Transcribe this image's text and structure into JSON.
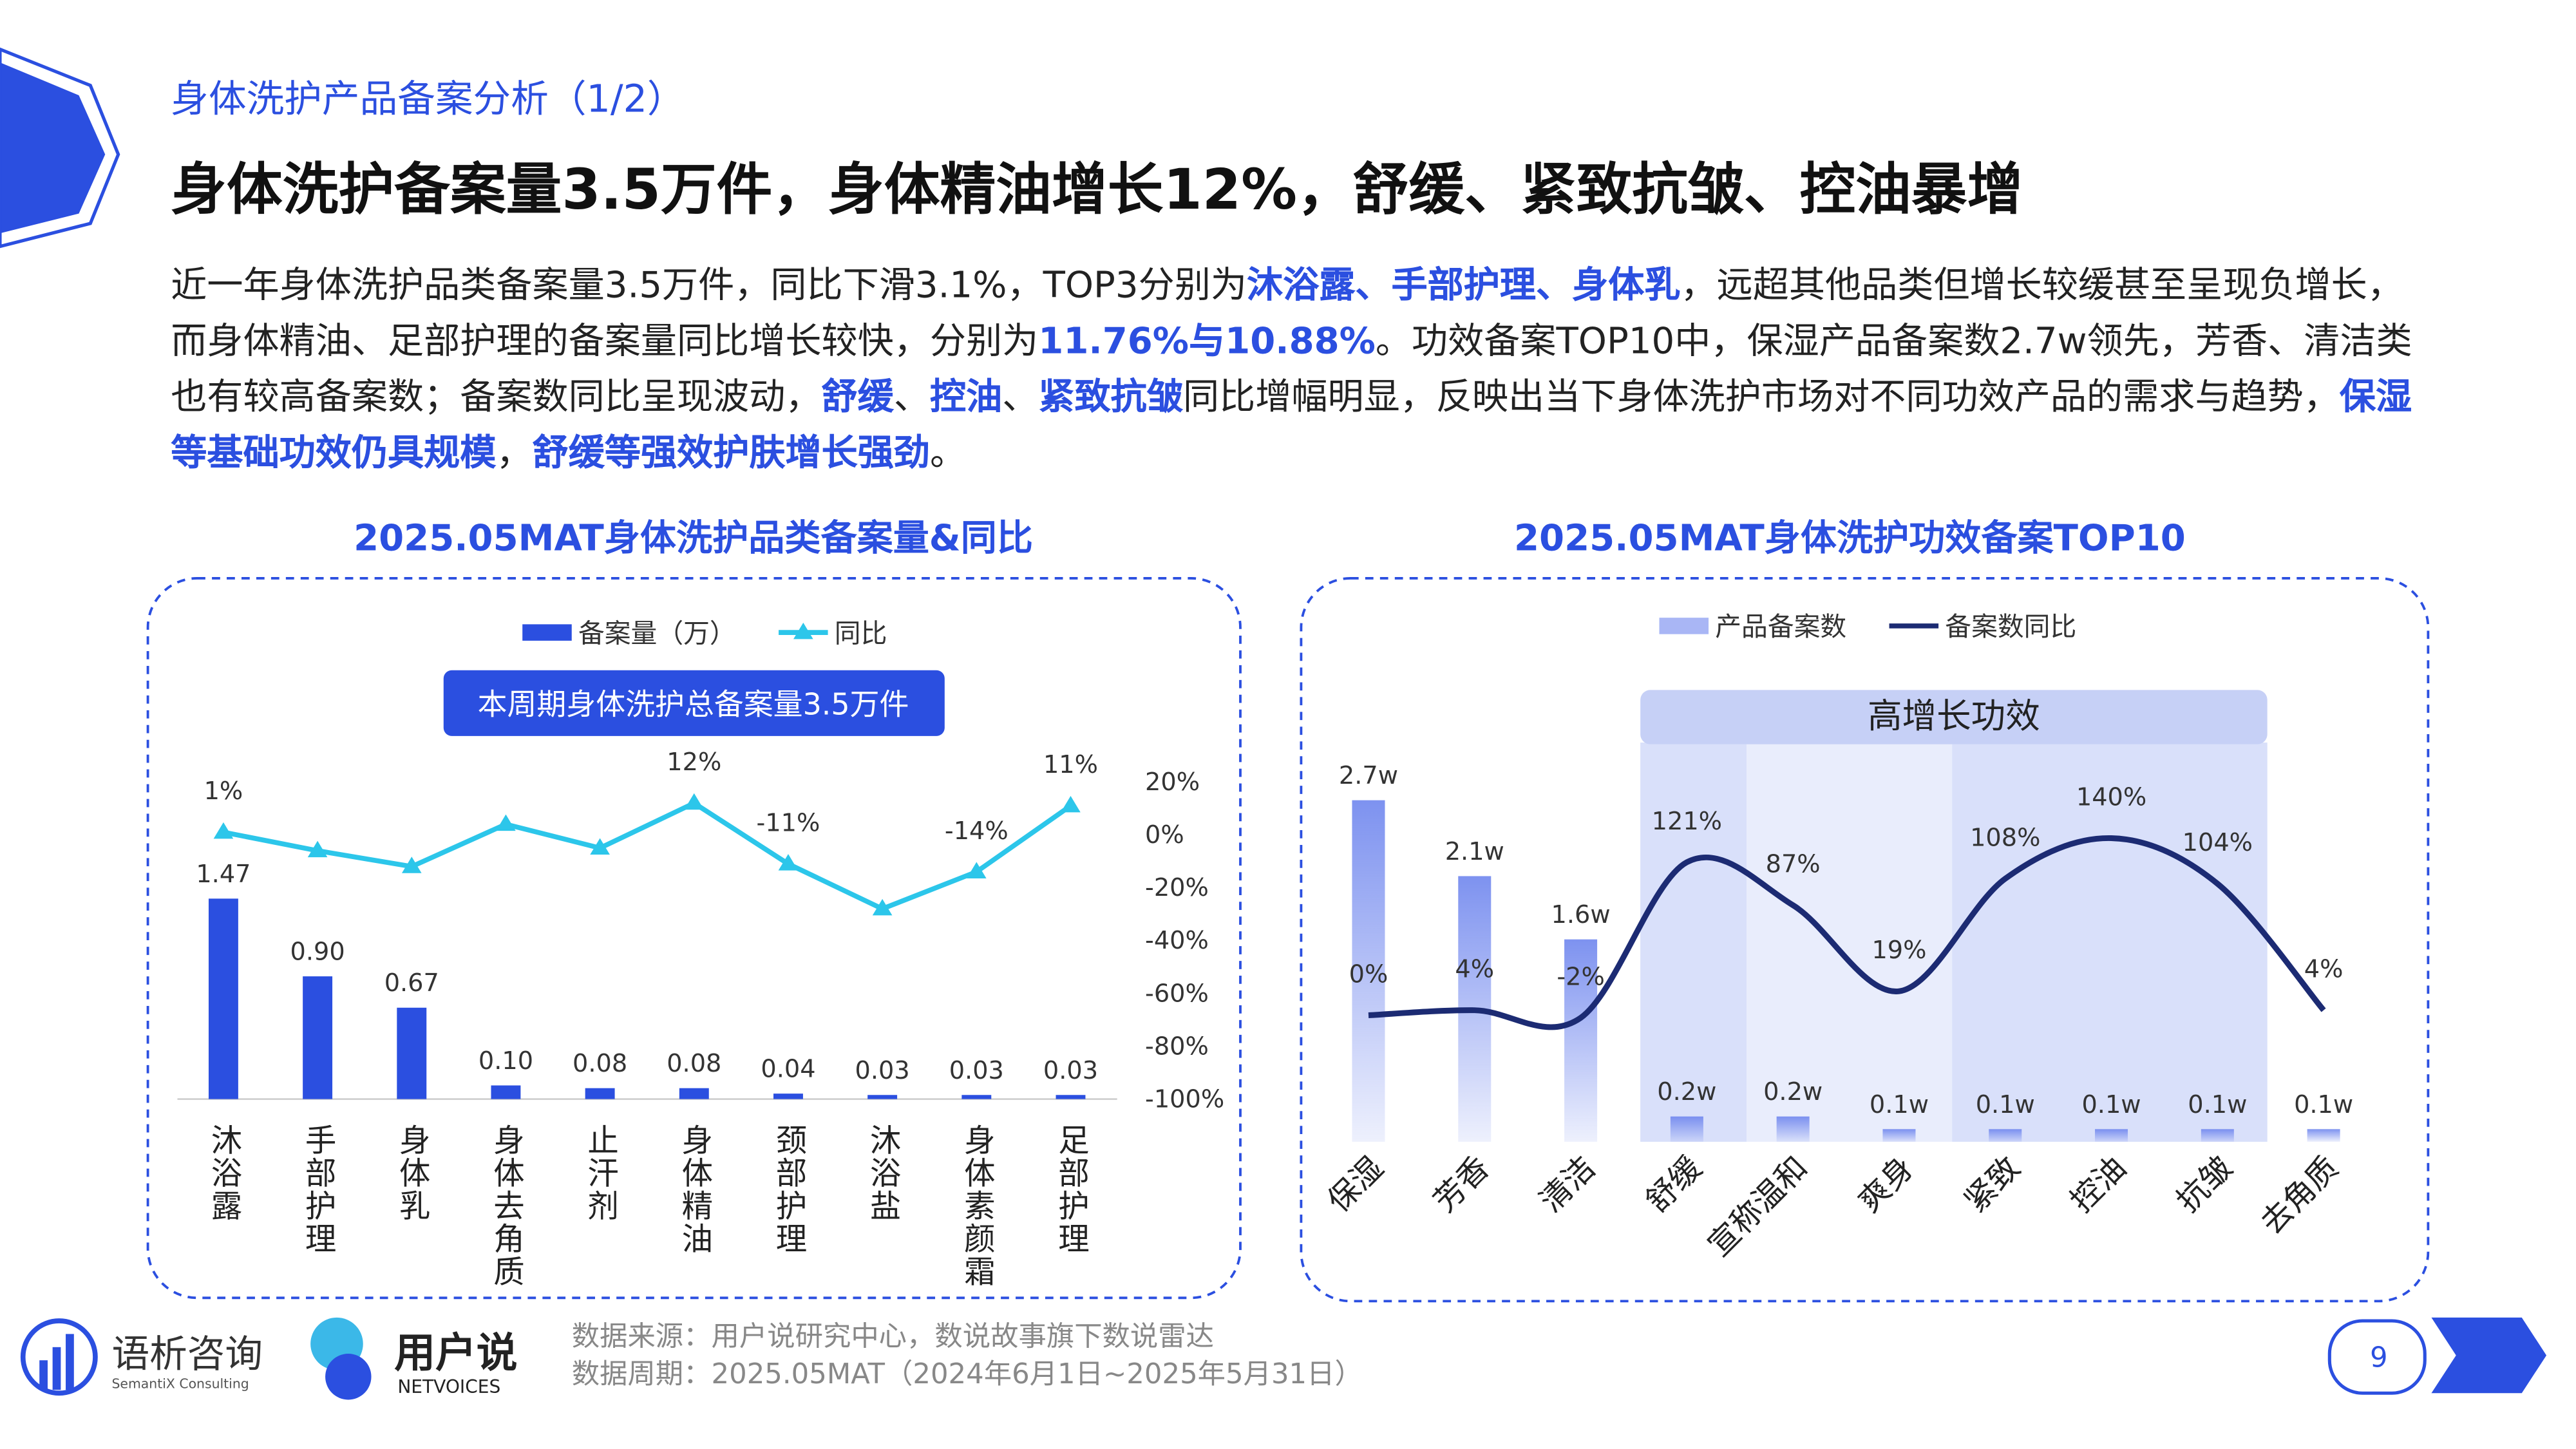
{
  "header": {
    "section": "身体洗护产品备案分析（1/2）",
    "title": "身体洗护备案量3.5万件，身体精油增长12%，舒缓、紧致抗皱、控油暴增"
  },
  "summary": {
    "runs": [
      {
        "text": "近一年身体洗护品类备案量3.5万件，同比下滑3.1%，TOP3分别为",
        "emphasis": false
      },
      {
        "text": "沐浴露、手部护理、身体乳",
        "emphasis": true
      },
      {
        "text": "，远超其他品类但增长较缓甚至呈现负增长，而身体精油、足部护理的备案量同比增长较快，分别为",
        "emphasis": false
      },
      {
        "text": "11.76%与10.88%",
        "emphasis": true
      },
      {
        "text": "。功效备案TOP10中，保湿产品备案数2.7w领先，芳香、清洁类也有较高备案数；备案数同比呈现波动，",
        "emphasis": false
      },
      {
        "text": "舒缓",
        "emphasis": true
      },
      {
        "text": "、",
        "emphasis": false
      },
      {
        "text": "控油",
        "emphasis": true
      },
      {
        "text": "、",
        "emphasis": false
      },
      {
        "text": "紧致抗皱",
        "emphasis": true
      },
      {
        "text": "同比增幅明显，反映出当下身体洗护市场对不同功效产品的需求与趋势，",
        "emphasis": false
      },
      {
        "text": "保湿等基础功效仍具规模",
        "emphasis": true
      },
      {
        "text": "，",
        "emphasis": false
      },
      {
        "text": "舒缓等强效护肤增长强劲",
        "emphasis": true
      },
      {
        "text": "。",
        "emphasis": false
      }
    ]
  },
  "chart_data": [
    {
      "type": "bar",
      "title": "2025.05MAT身体洗护品类备案量&同比",
      "annotation": "本周期身体洗护总备案量3.5万件",
      "categories": [
        "沐浴露",
        "手部护理",
        "身体乳",
        "身体去角质",
        "止汗剂",
        "身体精油",
        "颈部护理",
        "沐浴盐",
        "身体素颜霜",
        "足部护理"
      ],
      "series": [
        {
          "name": "备案量（万）",
          "color": "#2b4fe0",
          "values": [
            1.47,
            0.9,
            0.67,
            0.1,
            0.08,
            0.08,
            0.04,
            0.03,
            0.03,
            0.03
          ],
          "value_labels": [
            "1.47",
            "0.90",
            "0.67",
            "0.10",
            "0.08",
            "0.08",
            "0.04",
            "0.03",
            "0.03",
            "0.03"
          ]
        },
        {
          "name": "同比",
          "type": "line",
          "axis": "y2",
          "color": "#2cc6ea",
          "marker": "triangle",
          "smooth": false,
          "values": [
            1,
            -6,
            -12,
            4,
            -5,
            12,
            -11,
            -28,
            -14,
            11
          ],
          "value_labels": [
            "1%",
            null,
            null,
            null,
            null,
            "12%",
            "-11%",
            null,
            "-14%",
            "11%"
          ]
        }
      ],
      "y2lim": [
        -100,
        20
      ],
      "y2ticks": [
        {
          "value": 20,
          "label": "20%"
        },
        {
          "value": 0,
          "label": "0%"
        },
        {
          "value": -20,
          "label": "-20%"
        },
        {
          "value": -40,
          "label": "-40%"
        },
        {
          "value": -60,
          "label": "-60%"
        },
        {
          "value": -80,
          "label": "-80%"
        },
        {
          "value": -100,
          "label": "-100%"
        }
      ],
      "legend": "top"
    },
    {
      "type": "bar",
      "title": "2025.05MAT身体洗护功效备案TOP10",
      "annotation": "高增长功效",
      "categories": [
        "保湿",
        "芳香",
        "清洁",
        "舒缓",
        "宣称温和",
        "爽身",
        "紧致",
        "控油",
        "抗皱",
        "去角质"
      ],
      "series": [
        {
          "name": "产品备案数",
          "color": "#6f86ee",
          "values": [
            2.7,
            2.1,
            1.6,
            0.2,
            0.2,
            0.1,
            0.1,
            0.1,
            0.1,
            0.1
          ],
          "value_labels": [
            "2.7w",
            "2.1w",
            "1.6w",
            "0.2w",
            "0.2w",
            "0.1w",
            "0.1w",
            "0.1w",
            "0.1w",
            "0.1w"
          ]
        },
        {
          "name": "备案数同比",
          "type": "line",
          "axis": "y2",
          "color": "#1c2b73",
          "marker": "none",
          "smooth": true,
          "values": [
            0,
            4,
            -2,
            121,
            87,
            19,
            108,
            140,
            104,
            4
          ],
          "value_labels": [
            "0%",
            "4%",
            "-2%",
            "121%",
            "87%",
            "19%",
            "108%",
            "140%",
            "104%",
            "4%"
          ]
        }
      ],
      "legend": "top"
    }
  ],
  "footer": {
    "logos": [
      {
        "name": "语析咨询",
        "subtitle": "SemantiX Consulting"
      },
      {
        "name": "用户说",
        "subtitle": "NETVOICES"
      }
    ],
    "source": "数据来源：用户说研究中心，数说故事旗下数说雷达",
    "period": "数据周期：2025.05MAT（2024年6月1日~2025年5月31日）",
    "page": 9
  }
}
